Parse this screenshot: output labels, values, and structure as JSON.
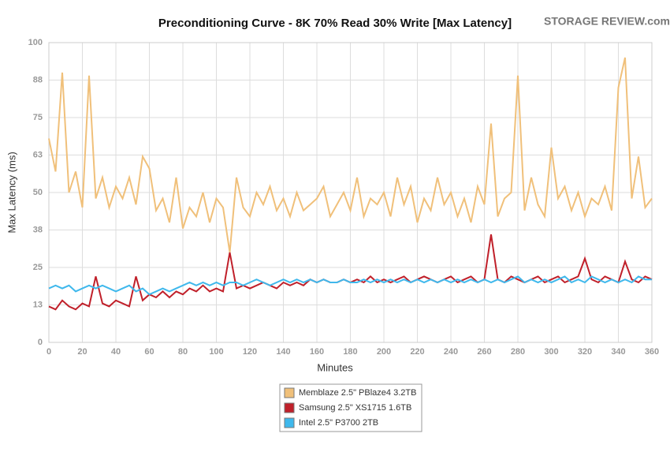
{
  "chart_data": {
    "type": "line",
    "title": "Preconditioning Curve - 8K 70% Read 30% Write [Max Latency]",
    "logo": "STORAGE REVIEW.com",
    "x_label": "Minutes",
    "y_label": "Max Latency (ms)",
    "x": [
      0,
      4,
      8,
      12,
      16,
      20,
      24,
      28,
      32,
      36,
      40,
      44,
      48,
      52,
      56,
      60,
      64,
      68,
      72,
      76,
      80,
      84,
      88,
      92,
      96,
      100,
      104,
      108,
      112,
      116,
      120,
      124,
      128,
      132,
      136,
      140,
      144,
      148,
      152,
      156,
      160,
      164,
      168,
      172,
      176,
      180,
      184,
      188,
      192,
      196,
      200,
      204,
      208,
      212,
      216,
      220,
      224,
      228,
      232,
      236,
      240,
      244,
      248,
      252,
      256,
      260,
      264,
      268,
      272,
      276,
      280,
      284,
      288,
      292,
      296,
      300,
      304,
      308,
      312,
      316,
      320,
      324,
      328,
      332,
      336,
      340,
      344,
      348,
      352,
      356,
      360
    ],
    "xlim": [
      0,
      360
    ],
    "xticks": [
      0,
      20,
      40,
      60,
      80,
      100,
      120,
      140,
      160,
      180,
      200,
      220,
      240,
      260,
      280,
      300,
      320,
      340,
      360
    ],
    "ylim": [
      0,
      100
    ],
    "yticks": [
      0,
      {
        "value": 12.5,
        "label": "13"
      },
      25,
      {
        "value": 37.5,
        "label": "38"
      },
      50,
      {
        "value": 62.5,
        "label": "63"
      },
      75,
      {
        "value": 87.5,
        "label": "88"
      },
      100
    ],
    "grid": true,
    "legend": "bottom",
    "series": [
      {
        "name": "Memblaze 2.5\" PBlaze4 3.2TB",
        "color": "#f0c07a",
        "values": [
          68,
          57,
          90,
          50,
          57,
          45,
          89,
          48,
          55,
          45,
          52,
          48,
          55,
          46,
          62,
          58,
          44,
          48,
          40,
          55,
          38,
          45,
          42,
          50,
          40,
          48,
          45,
          30,
          55,
          45,
          42,
          50,
          46,
          52,
          44,
          48,
          42,
          50,
          44,
          46,
          48,
          52,
          42,
          46,
          50,
          44,
          55,
          42,
          48,
          46,
          50,
          42,
          55,
          46,
          52,
          40,
          48,
          44,
          55,
          46,
          50,
          42,
          48,
          40,
          52,
          46,
          73,
          42,
          48,
          50,
          89,
          44,
          55,
          46,
          42,
          65,
          48,
          52,
          44,
          50,
          42,
          48,
          46,
          52,
          44,
          85,
          95,
          48,
          62,
          45,
          48
        ]
      },
      {
        "name": "Samsung 2.5\" XS1715 1.6TB",
        "color": "#c0202a",
        "values": [
          12,
          11,
          14,
          12,
          11,
          13,
          12,
          22,
          13,
          12,
          14,
          13,
          12,
          22,
          14,
          16,
          15,
          17,
          15,
          17,
          16,
          18,
          17,
          19,
          17,
          18,
          17,
          30,
          18,
          19,
          18,
          19,
          20,
          19,
          18,
          20,
          19,
          20,
          19,
          21,
          20,
          21,
          20,
          20,
          21,
          20,
          21,
          20,
          22,
          20,
          21,
          20,
          21,
          22,
          20,
          21,
          22,
          21,
          20,
          21,
          22,
          20,
          21,
          22,
          20,
          21,
          36,
          21,
          20,
          22,
          21,
          20,
          21,
          22,
          20,
          21,
          22,
          20,
          21,
          22,
          28,
          21,
          20,
          22,
          21,
          20,
          27,
          21,
          20,
          22,
          21
        ]
      },
      {
        "name": "Intel 2.5\" P3700 2TB",
        "color": "#3fb8ec",
        "values": [
          18,
          19,
          18,
          19,
          17,
          18,
          19,
          18,
          19,
          18,
          17,
          18,
          19,
          17,
          18,
          16,
          17,
          18,
          17,
          18,
          19,
          20,
          19,
          20,
          19,
          20,
          19,
          20,
          20,
          19,
          20,
          21,
          20,
          19,
          20,
          21,
          20,
          21,
          20,
          21,
          20,
          21,
          20,
          20,
          21,
          20,
          20,
          21,
          20,
          21,
          20,
          21,
          20,
          21,
          20,
          21,
          20,
          21,
          20,
          21,
          20,
          21,
          20,
          21,
          20,
          21,
          20,
          21,
          20,
          21,
          22,
          20,
          21,
          20,
          21,
          20,
          21,
          22,
          20,
          21,
          20,
          22,
          21,
          20,
          21,
          20,
          21,
          20,
          22,
          21,
          21
        ]
      }
    ]
  }
}
